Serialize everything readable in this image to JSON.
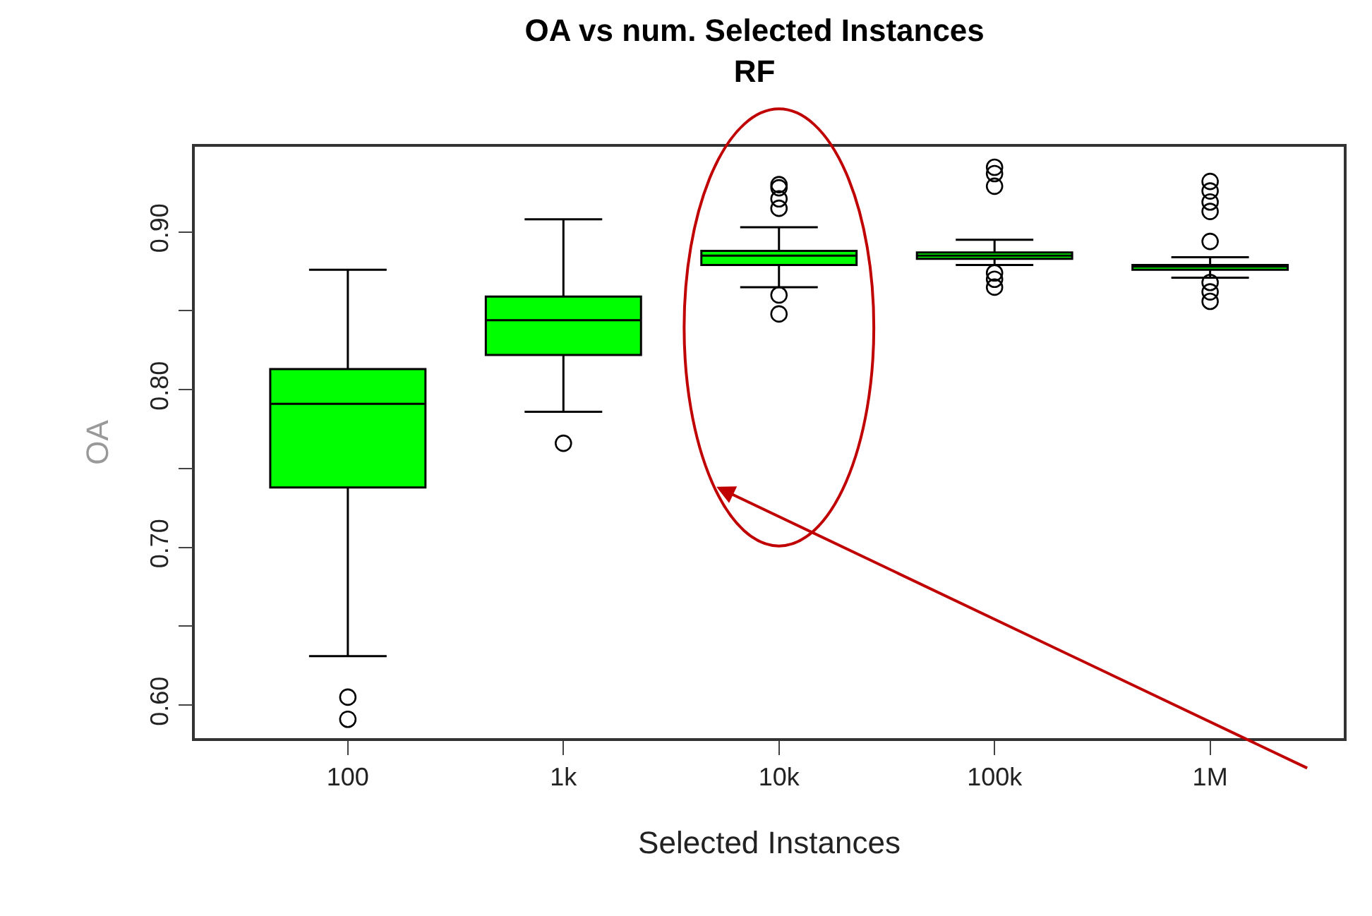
{
  "chart_data": {
    "type": "box",
    "title": "OA vs num. Selected Instances\nRF",
    "xlabel": "Selected Instances",
    "ylabel": "OA",
    "categories": [
      "100",
      "1k",
      "10k",
      "100k",
      "1M"
    ],
    "color": "#00ff00",
    "boxes": [
      {
        "low": 0.631,
        "q1": 0.738,
        "median": 0.791,
        "q3": 0.813,
        "high": 0.876,
        "outliers": [
          0.605,
          0.591
        ]
      },
      {
        "low": 0.786,
        "q1": 0.822,
        "median": 0.844,
        "q3": 0.859,
        "high": 0.908,
        "outliers": [
          0.766
        ]
      },
      {
        "low": 0.865,
        "q1": 0.879,
        "median": 0.885,
        "q3": 0.888,
        "high": 0.903,
        "outliers": [
          0.93,
          0.928,
          0.921,
          0.915,
          0.86,
          0.848
        ]
      },
      {
        "low": 0.879,
        "q1": 0.883,
        "median": 0.885,
        "q3": 0.887,
        "high": 0.895,
        "outliers": [
          0.941,
          0.937,
          0.929,
          0.874,
          0.87,
          0.865
        ]
      },
      {
        "low": 0.871,
        "q1": 0.876,
        "median": 0.878,
        "q3": 0.879,
        "high": 0.884,
        "outliers": [
          0.932,
          0.926,
          0.919,
          0.913,
          0.894,
          0.868,
          0.862,
          0.856
        ]
      }
    ],
    "ylim": [
      0.579,
      0.954
    ],
    "yticks": [
      {
        "value": 0.6,
        "label": "0.60"
      },
      {
        "value": 0.65,
        "label": null
      },
      {
        "value": 0.7,
        "label": "0.70"
      },
      {
        "value": 0.75,
        "label": null
      },
      {
        "value": 0.8,
        "label": "0.80"
      },
      {
        "value": 0.85,
        "label": null
      },
      {
        "value": 0.9,
        "label": "0.90"
      }
    ],
    "marker": "circle",
    "grid": false,
    "legend": false
  }
}
